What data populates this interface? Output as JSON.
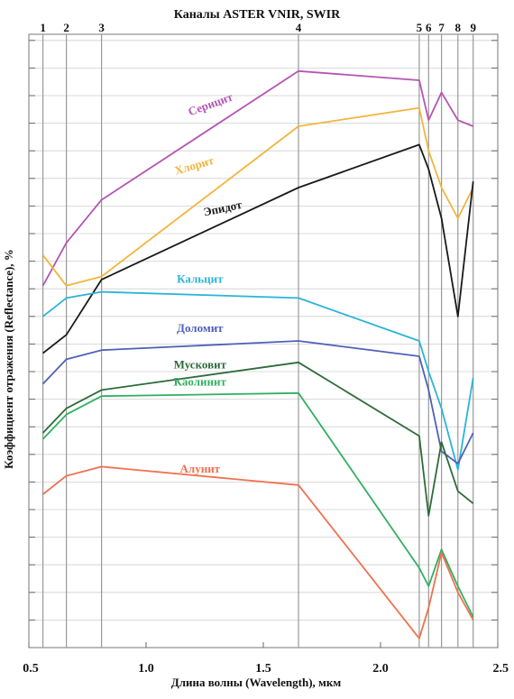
{
  "chart_data": {
    "type": "line",
    "title": "Каналы ASTER  VNIR, SWIR",
    "xlabel": "Длина волны (Wavelength), мкм",
    "ylabel": "Коэффициент отражения (Reflectance), %",
    "xlim": [
      0.5,
      2.5
    ],
    "ylim": [
      0,
      100
    ],
    "x_ticks": [
      "0.5",
      "1.0",
      "1.5",
      "2.0",
      "2.5"
    ],
    "grid": true,
    "bands": [
      {
        "label": "1",
        "x": 0.56
      },
      {
        "label": "2",
        "x": 0.66
      },
      {
        "label": "3",
        "x": 0.81
      },
      {
        "label": "4",
        "x": 1.65
      },
      {
        "label": "5",
        "x": 2.165
      },
      {
        "label": "6",
        "x": 2.205
      },
      {
        "label": "7",
        "x": 2.26
      },
      {
        "label": "8",
        "x": 2.33
      },
      {
        "label": "9",
        "x": 2.395
      }
    ],
    "x": [
      0.56,
      0.66,
      0.81,
      1.65,
      2.165,
      2.205,
      2.26,
      2.33,
      2.395
    ],
    "series": [
      {
        "name": "Серицит",
        "color": "#b455b4",
        "values": [
          59,
          66,
          73,
          94,
          92.5,
          86,
          90.5,
          86,
          85
        ]
      },
      {
        "name": "Хлорит",
        "color": "#f2b53c",
        "values": [
          64,
          59,
          60.5,
          85,
          88,
          81,
          75,
          70,
          75
        ]
      },
      {
        "name": "Эпидот",
        "color": "#1a1a1a",
        "values": [
          48,
          51,
          60,
          75,
          82,
          78,
          70,
          54,
          76
        ]
      },
      {
        "name": "Кальцит",
        "color": "#2ab4d8",
        "values": [
          54,
          57,
          58,
          57,
          50,
          45,
          39,
          29,
          44
        ]
      },
      {
        "name": "Доломит",
        "color": "#5060b8",
        "values": [
          43,
          47,
          48.5,
          50,
          47.5,
          42,
          32,
          30,
          35
        ]
      },
      {
        "name": "Мусковит",
        "color": "#2e6b3a",
        "values": [
          35,
          39,
          42,
          46.5,
          34.5,
          21.5,
          33.5,
          25.5,
          23.5
        ]
      },
      {
        "name": "Каолинит",
        "color": "#2fb060",
        "values": [
          34,
          38,
          41,
          41.5,
          13,
          10,
          16,
          10,
          5
        ]
      },
      {
        "name": "Алунит",
        "color": "#f07050",
        "values": [
          25,
          28,
          29.5,
          26.5,
          1.5,
          6.5,
          15.5,
          9,
          4.5
        ]
      }
    ]
  }
}
